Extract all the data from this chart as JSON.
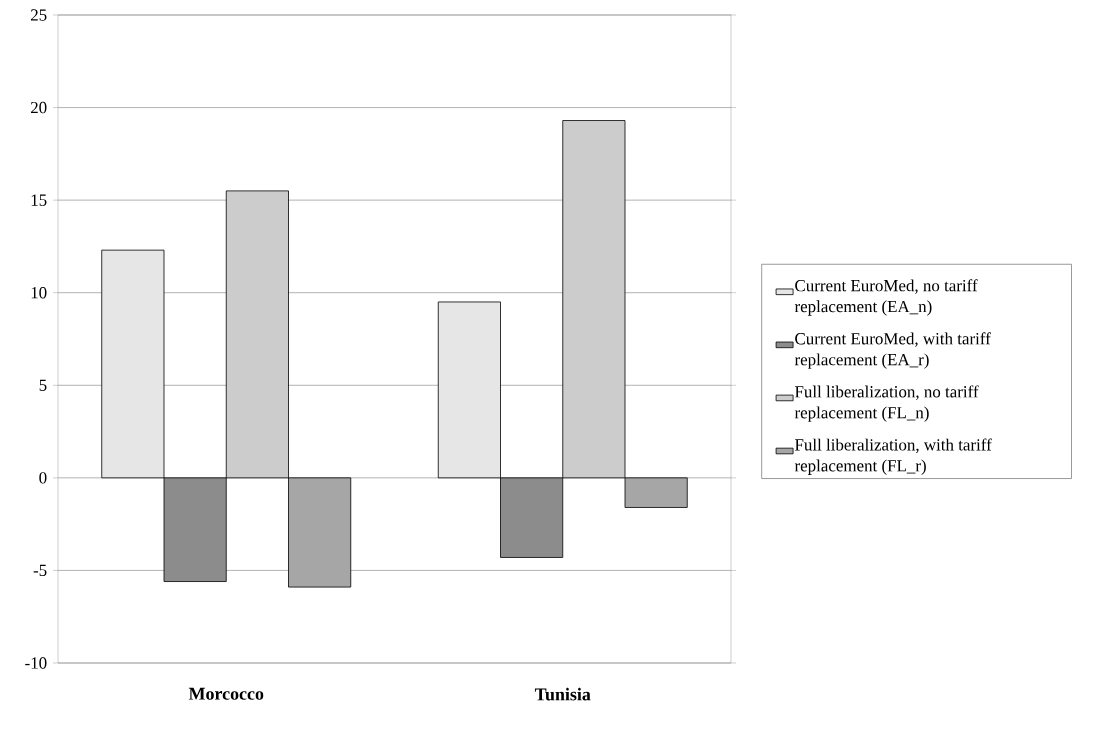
{
  "chart_data": {
    "type": "bar",
    "categories": [
      "Morcocco",
      "Tunisia"
    ],
    "series": [
      {
        "name": "Current EuroMed, no tariff replacement (EA_n)",
        "color": "#e6e6e6",
        "values": [
          12.3,
          9.5
        ]
      },
      {
        "name": "Current EuroMed, with tariff replacement (EA_r)",
        "color": "#8c8c8c",
        "values": [
          -5.6,
          -4.3
        ]
      },
      {
        "name": "Full liberalization, no tariff replacement (FL_n)",
        "color": "#cccccc",
        "values": [
          15.5,
          19.3
        ]
      },
      {
        "name": "Full liberalization, with tariff replacement (FL_r)",
        "color": "#a6a6a6",
        "values": [
          -5.9,
          -1.6
        ]
      }
    ],
    "ylim": [
      -10,
      25
    ],
    "yticks": [
      -10,
      -5,
      0,
      5,
      10,
      15,
      20,
      25
    ],
    "grid": "y",
    "legend": "right"
  }
}
